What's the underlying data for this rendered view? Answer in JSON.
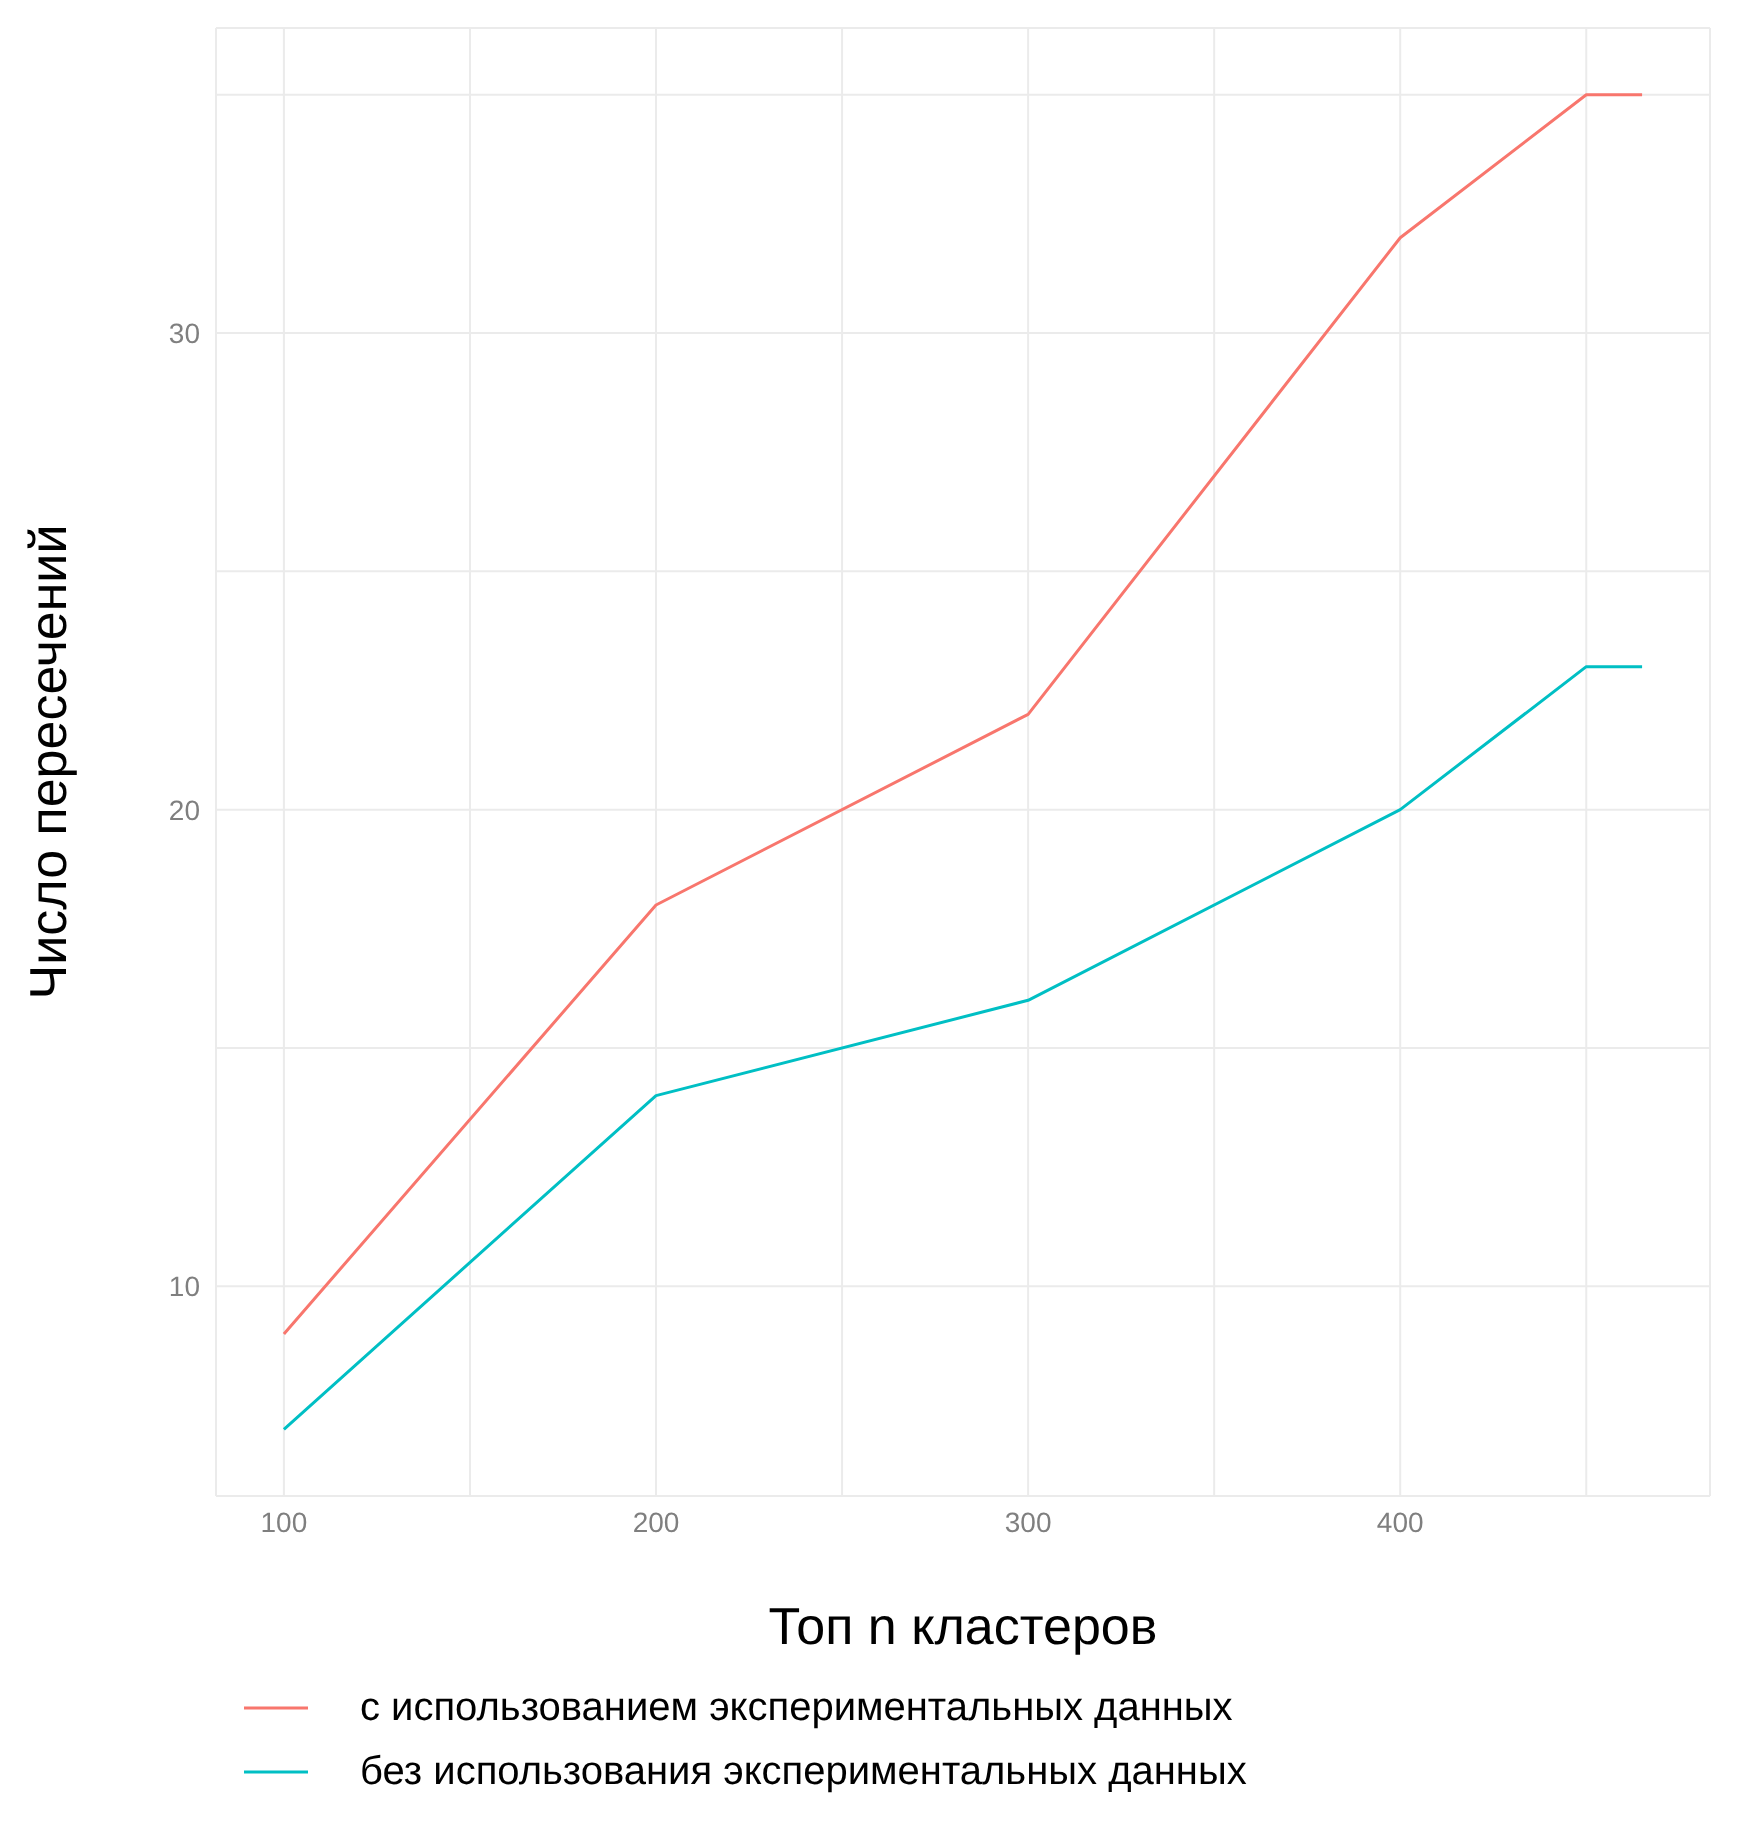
{
  "chart_data": {
    "type": "line",
    "xlabel": "Топ n кластеров",
    "ylabel": "Число пересечений",
    "x": [
      100,
      200,
      300,
      400,
      450,
      465
    ],
    "series": [
      {
        "name": "с использованием экспериментальных данных",
        "color": "#f8766d",
        "values": [
          9,
          18,
          22,
          32,
          35,
          35
        ]
      },
      {
        "name": "без использования экспериментальных данных",
        "color": "#00bfc4",
        "values": [
          7,
          14,
          16,
          20,
          23,
          23
        ]
      }
    ],
    "xlim": [
      81.75,
      483.25
    ],
    "xticks": [
      100,
      {
        "value": 150,
        "label": null
      },
      200,
      {
        "value": 250,
        "label": null
      },
      300,
      {
        "value": 350,
        "label": null
      },
      400,
      {
        "value": 450,
        "label": null
      }
    ],
    "ylim": [
      5.6,
      36.4
    ],
    "yticks": [
      10,
      {
        "value": 15,
        "label": null
      },
      20,
      {
        "value": 25,
        "label": null
      },
      30,
      {
        "value": 35,
        "label": null
      }
    ],
    "grid": true,
    "legend": "bottom",
    "marker": "none",
    "line_style": "solid"
  }
}
